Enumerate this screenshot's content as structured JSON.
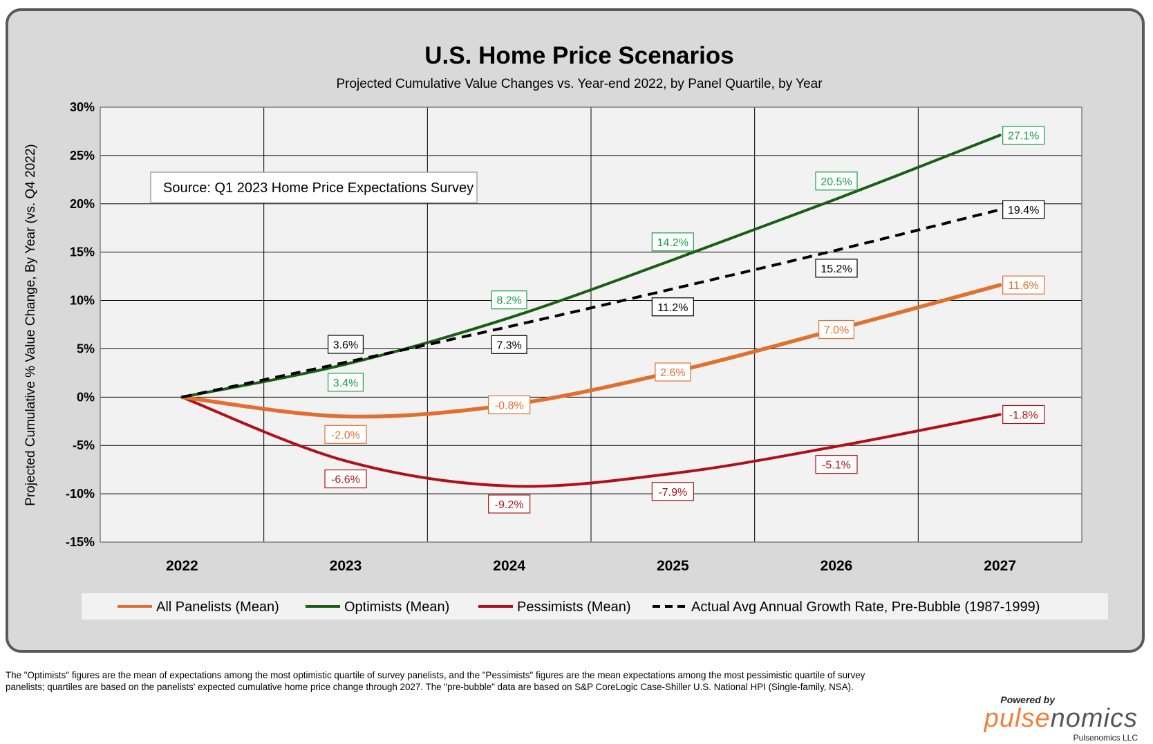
{
  "source_note": "Source: Q1 2023 Home Price Expectations Survey",
  "footnote": {
    "line1": "The \"Optimists\" figures are the mean of expectations  among the most optimistic quartile of survey panelists, and the \"Pessimists\" figures are the mean expectations  among the most pessimistic quartile of survey",
    "line2": "panelists; quartiles are  based on the panelists' expected cumulative home price change through 2027.  The \"pre-bubble\" data  are based on S&P CoreLogic Case-Shiller U.S. National HPI (Single-family, NSA)."
  },
  "branding": {
    "powered_by": "Powered by",
    "logo_part1": "pulse",
    "logo_part2": "nomics",
    "company": "Pulsenomics LLC"
  },
  "colors": {
    "frame_bg": "#d9d9d9",
    "plot_bg": "#f2f2f2",
    "all_panelists": "#e07030",
    "optimists": "#1a5e14",
    "optimists_label": "#14a046",
    "pessimists": "#b01018",
    "prebubble": "#000000"
  },
  "chart_data": {
    "type": "line",
    "title": "U.S. Home Price Scenarios",
    "subtitle": "Projected Cumulative Value Changes vs. Year-end 2022, by Panel Quartile, by Year",
    "ylabel": "Projected Cumulative % Value Change, By Year  (vs. Q4 2022)",
    "xlabel": "",
    "x": [
      "2022",
      "2023",
      "2024",
      "2025",
      "2026",
      "2027"
    ],
    "ylim": [
      -15,
      30
    ],
    "yticks": [
      30,
      25,
      20,
      15,
      10,
      5,
      0,
      -5,
      -10,
      -15
    ],
    "ytick_labels": [
      "30%",
      "25%",
      "20%",
      "15%",
      "10%",
      "5%",
      "0%",
      "-5%",
      "-10%",
      "-15%"
    ],
    "grid": true,
    "legend_position": "bottom",
    "series": [
      {
        "name": "All Panelists (Mean)",
        "key": "all",
        "values": [
          0,
          -2.0,
          -0.8,
          2.6,
          7.0,
          11.6
        ],
        "labels": [
          "",
          "-2.0%",
          "-0.8%",
          "2.6%",
          "7.0%",
          "11.6%"
        ],
        "style": "solid"
      },
      {
        "name": "Optimists (Mean)",
        "key": "opt",
        "values": [
          0,
          3.4,
          8.2,
          14.2,
          20.5,
          27.1
        ],
        "labels": [
          "",
          "3.4%",
          "8.2%",
          "14.2%",
          "20.5%",
          "27.1%"
        ],
        "style": "solid"
      },
      {
        "name": "Pessimists (Mean)",
        "key": "pes",
        "values": [
          0,
          -6.6,
          -9.2,
          -7.9,
          -5.1,
          -1.8
        ],
        "labels": [
          "",
          "-6.6%",
          "-9.2%",
          "-7.9%",
          "-5.1%",
          "-1.8%"
        ],
        "style": "solid"
      },
      {
        "name": "Actual Avg Annual Growth Rate, Pre-Bubble (1987-1999)",
        "key": "pre",
        "values": [
          0,
          3.6,
          7.3,
          11.2,
          15.2,
          19.4
        ],
        "labels": [
          "",
          "3.6%",
          "7.3%",
          "11.2%",
          "15.2%",
          "19.4%"
        ],
        "style": "dashed"
      }
    ]
  }
}
